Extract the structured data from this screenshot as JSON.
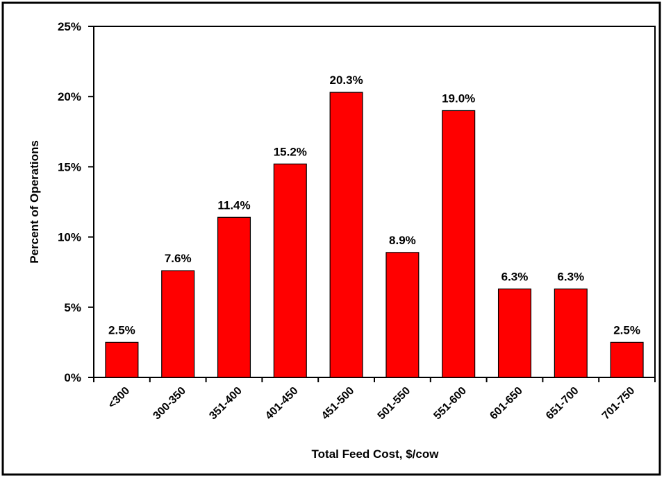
{
  "chart_data": {
    "type": "bar",
    "x_label": "Total Feed Cost, $/cow",
    "y_label": "Percent of Operations",
    "categories": [
      "<300",
      "300-350",
      "351-400",
      "401-450",
      "451-500",
      "501-550",
      "551-600",
      "601-650",
      "651-700",
      "701-750"
    ],
    "values": [
      2.5,
      7.6,
      11.4,
      15.2,
      20.3,
      8.9,
      19.0,
      6.3,
      6.3,
      2.5
    ],
    "value_labels": [
      "2.5%",
      "7.6%",
      "11.4%",
      "15.2%",
      "20.3%",
      "8.9%",
      "19.0%",
      "6.3%",
      "6.3%",
      "2.5%"
    ],
    "color": "#ff0000",
    "ylim": [
      0,
      25
    ],
    "yticks": [
      {
        "value": 0,
        "label": "0%"
      },
      {
        "value": 5,
        "label": "5%"
      },
      {
        "value": 10,
        "label": "10%"
      },
      {
        "value": 15,
        "label": "15%"
      },
      {
        "value": 20,
        "label": "20%"
      },
      {
        "value": 25,
        "label": "25%"
      }
    ],
    "grid": false
  }
}
